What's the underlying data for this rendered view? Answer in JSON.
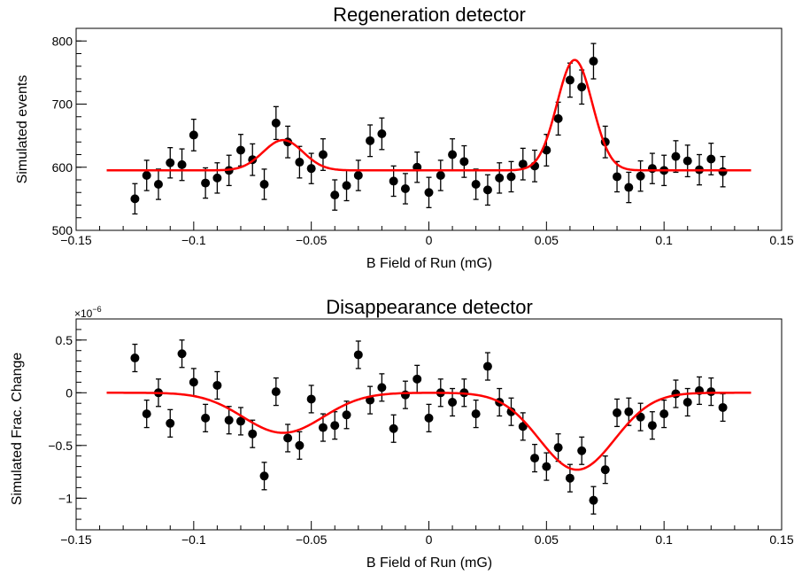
{
  "chart_data": [
    {
      "type": "scatter",
      "title": "Regeneration detector",
      "xlabel": "B Field of Run (mG)",
      "ylabel": "Simulated events",
      "xlim": [
        -0.15,
        0.15
      ],
      "ylim": [
        500,
        820
      ],
      "xticks": [
        -0.15,
        -0.1,
        -0.05,
        0,
        0.05,
        0.1,
        0.15
      ],
      "xtick_labels": [
        "−0.15",
        "−0.1",
        "−0.05",
        "0",
        "0.05",
        "0.1",
        "0.15"
      ],
      "yticks": [
        500,
        600,
        700,
        800
      ],
      "ytick_labels": [
        "500",
        "600",
        "700",
        "800"
      ],
      "grid": false,
      "marker_color": "#000000",
      "fit_color": "#ff0000",
      "points": {
        "x": [
          -0.125,
          -0.12,
          -0.115,
          -0.11,
          -0.105,
          -0.1,
          -0.095,
          -0.09,
          -0.085,
          -0.08,
          -0.075,
          -0.07,
          -0.065,
          -0.06,
          -0.055,
          -0.05,
          -0.045,
          -0.04,
          -0.035,
          -0.03,
          -0.025,
          -0.02,
          -0.015,
          -0.01,
          -0.005,
          0,
          0.005,
          0.01,
          0.015,
          0.02,
          0.025,
          0.03,
          0.035,
          0.04,
          0.045,
          0.05,
          0.055,
          0.06,
          0.065,
          0.07,
          0.075,
          0.08,
          0.085,
          0.09,
          0.095,
          0.1,
          0.105,
          0.11,
          0.115,
          0.12,
          0.125
        ],
        "y": [
          550,
          587,
          573,
          607,
          604,
          651,
          575,
          583,
          595,
          627,
          612,
          573,
          670,
          640,
          608,
          598,
          620,
          556,
          571,
          587,
          642,
          653,
          578,
          566,
          600,
          560,
          587,
          620,
          609,
          573,
          564,
          583,
          585,
          605,
          602,
          627,
          677,
          738,
          727,
          768,
          640,
          585,
          568,
          586,
          598,
          595,
          617,
          610,
          596,
          613,
          593
        ],
        "yerr": [
          24,
          24,
          24,
          24,
          25,
          25,
          24,
          24,
          24,
          25,
          25,
          24,
          26,
          25,
          25,
          24,
          25,
          24,
          24,
          24,
          25,
          25,
          24,
          24,
          24,
          24,
          24,
          25,
          25,
          24,
          24,
          24,
          24,
          25,
          25,
          25,
          26,
          27,
          27,
          28,
          25,
          24,
          24,
          24,
          24,
          24,
          25,
          25,
          24,
          25,
          24
        ]
      },
      "fit": {
        "baseline": 595,
        "peaks": [
          {
            "center": -0.062,
            "amplitude": 48,
            "sigma": 0.0085
          },
          {
            "center": 0.062,
            "amplitude": 175,
            "sigma": 0.0075
          }
        ],
        "xrange": [
          -0.137,
          0.137
        ]
      }
    },
    {
      "type": "scatter",
      "title": "Disappearance detector",
      "xlabel": "B Field of Run (mG)",
      "ylabel": "Simulated Frac. Change",
      "y_multiplier_label": "×10",
      "y_multiplier_exponent": "−6",
      "xlim": [
        -0.15,
        0.15
      ],
      "ylim": [
        -1.3,
        0.7
      ],
      "xticks": [
        -0.15,
        -0.1,
        -0.05,
        0,
        0.05,
        0.1,
        0.15
      ],
      "xtick_labels": [
        "−0.15",
        "−0.1",
        "−0.05",
        "0",
        "0.05",
        "0.1",
        "0.15"
      ],
      "yticks": [
        -1,
        -0.5,
        0,
        0.5
      ],
      "ytick_labels": [
        "−1",
        "−0.5",
        "0",
        "0.5"
      ],
      "grid": false,
      "marker_color": "#000000",
      "fit_color": "#ff0000",
      "points": {
        "x": [
          -0.125,
          -0.12,
          -0.115,
          -0.11,
          -0.105,
          -0.1,
          -0.095,
          -0.09,
          -0.085,
          -0.08,
          -0.075,
          -0.07,
          -0.065,
          -0.06,
          -0.055,
          -0.05,
          -0.045,
          -0.04,
          -0.035,
          -0.03,
          -0.025,
          -0.02,
          -0.015,
          -0.01,
          -0.005,
          0,
          0.005,
          0.01,
          0.015,
          0.02,
          0.025,
          0.03,
          0.035,
          0.04,
          0.045,
          0.05,
          0.055,
          0.06,
          0.065,
          0.07,
          0.075,
          0.08,
          0.085,
          0.09,
          0.095,
          0.1,
          0.105,
          0.11,
          0.115,
          0.12,
          0.125
        ],
        "y": [
          0.33,
          -0.2,
          0.0,
          -0.29,
          0.37,
          0.1,
          -0.24,
          0.07,
          -0.26,
          -0.27,
          -0.39,
          -0.79,
          0.01,
          -0.43,
          -0.5,
          -0.06,
          -0.33,
          -0.31,
          -0.21,
          0.36,
          -0.07,
          0.05,
          -0.34,
          -0.02,
          0.13,
          -0.24,
          0.0,
          -0.09,
          0.0,
          -0.2,
          0.25,
          -0.09,
          -0.18,
          -0.32,
          -0.62,
          -0.7,
          -0.52,
          -0.81,
          -0.55,
          -1.02,
          -0.73,
          -0.19,
          -0.18,
          -0.23,
          -0.31,
          -0.2,
          -0.01,
          -0.09,
          0.02,
          0.01,
          -0.14
        ],
        "yerr": [
          0.13,
          0.13,
          0.13,
          0.13,
          0.13,
          0.13,
          0.13,
          0.13,
          0.13,
          0.13,
          0.13,
          0.13,
          0.13,
          0.13,
          0.13,
          0.13,
          0.13,
          0.13,
          0.13,
          0.13,
          0.13,
          0.13,
          0.13,
          0.13,
          0.13,
          0.13,
          0.13,
          0.13,
          0.13,
          0.13,
          0.13,
          0.13,
          0.13,
          0.13,
          0.13,
          0.13,
          0.13,
          0.13,
          0.13,
          0.13,
          0.13,
          0.13,
          0.13,
          0.13,
          0.13,
          0.13,
          0.13,
          0.13,
          0.13,
          0.13,
          0.13
        ]
      },
      "fit": {
        "baseline": 0,
        "peaks": [
          {
            "center": -0.062,
            "amplitude": -0.38,
            "sigma": 0.017
          },
          {
            "center": 0.063,
            "amplitude": -0.73,
            "sigma": 0.016
          }
        ],
        "xrange": [
          -0.137,
          0.137
        ]
      }
    }
  ]
}
